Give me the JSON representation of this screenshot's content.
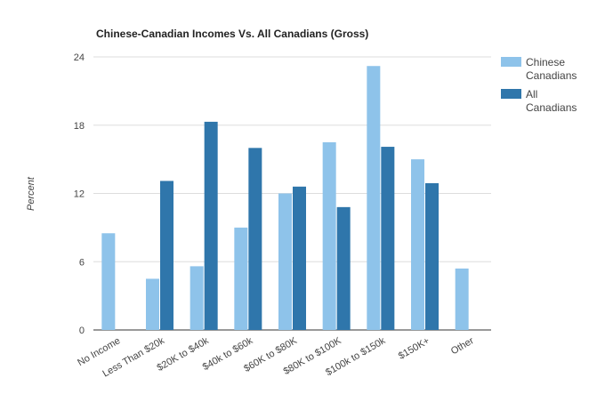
{
  "chart_data": {
    "type": "bar",
    "title": "Chinese-Canadian Incomes Vs. All Canadians (Gross)",
    "xlabel": "",
    "ylabel": "Percent",
    "ylim": [
      0,
      24
    ],
    "yticks": [
      "0",
      "6",
      "12",
      "18",
      "24"
    ],
    "grid": true,
    "legend_position": "right",
    "categories": [
      "No Income",
      "Less Than $20k",
      "$20K to $40k",
      "$40k to $60k",
      "$60K to $80K",
      "$80K to $100K",
      "$100k to $150k",
      "$150K+",
      "Other"
    ],
    "series": [
      {
        "name": "Chinese Canadians",
        "color": "#8ec3ea",
        "values": [
          8.5,
          4.5,
          5.6,
          9.0,
          12.0,
          16.5,
          23.2,
          15.0,
          5.4
        ]
      },
      {
        "name": "All Canadians",
        "color": "#2f76ab",
        "values": [
          null,
          13.1,
          18.3,
          16.0,
          12.6,
          10.8,
          16.1,
          12.9,
          null
        ]
      }
    ],
    "legend": [
      {
        "label_lines": [
          "Chinese",
          "Canadians"
        ]
      },
      {
        "label_lines": [
          "All",
          "Canadians"
        ]
      }
    ]
  }
}
